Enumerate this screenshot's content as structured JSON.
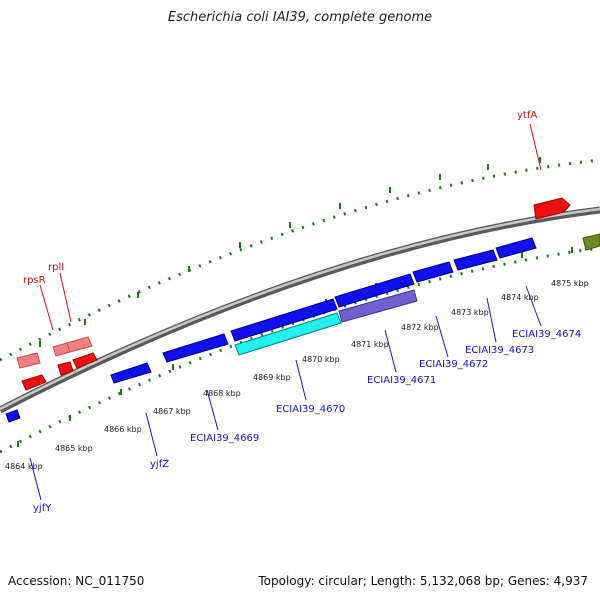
{
  "title": "Escherichia coli IAI39, complete genome",
  "footer": {
    "accession": "Accession: NC_011750",
    "summary": "Topology: circular; Length: 5,132,068 bp; Genes: 4,937"
  },
  "colors": {
    "backbone": "#8c8c8c",
    "tick_dot": "#1a7a1a",
    "gene_label_top": "#d21010",
    "gene_label_bottom": "#1515c8",
    "gene_blue": "#1010ee",
    "gene_cyan": "#20f0f0",
    "gene_purple": "#7060d0",
    "gene_red": "#ee1010",
    "gene_pink": "#f08080",
    "gene_olive": "#6a8a20"
  },
  "kbp_ticks": [
    "4864 kbp",
    "4865 kbp",
    "4866 kbp",
    "4867 kbp",
    "4868 kbp",
    "4869 kbp",
    "4870 kbp",
    "4871 kbp",
    "4872 kbp",
    "4873 kbp",
    "4874 kbp",
    "4875 kbp"
  ],
  "gene_labels": {
    "top": [
      "ytfA",
      "rpsR",
      "rplI"
    ],
    "bottom": [
      "yjfY",
      "yjfZ",
      "ECIAI39_4669",
      "ECIAI39_4670",
      "ECIAI39_4671",
      "ECIAI39_4672",
      "ECIAI39_4673",
      "ECIAI39_4674"
    ]
  }
}
